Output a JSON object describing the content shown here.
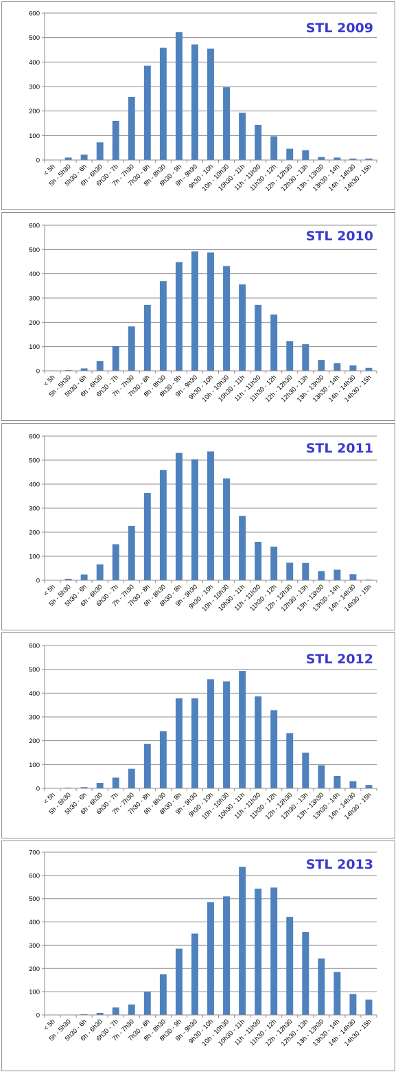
{
  "colors": {
    "bar": "#4f81bd",
    "grid": "#8c8c8c",
    "axis": "#8c8c8c",
    "title": "#3a3ad2"
  },
  "chart_data": [
    {
      "type": "bar",
      "title": "STL 2009",
      "categories": [
        "< 5h",
        "5h - 5h30",
        "5h30 - 6h",
        "6h - 6h30",
        "6h30 - 7h",
        "7h - 7h30",
        "7h30 - 8h",
        "8h - 8h30",
        "8h30 - 9h",
        "9h - 9h30",
        "9h30 - 10h",
        "10h - 10h30",
        "10h30 - 11h",
        "11h - 11h30",
        "11h30 - 12h",
        "12h - 12h30",
        "12h30 - 13h",
        "13h - 13h30",
        "13h30 - 14h",
        "14h - 14h30",
        "14h30 - 15h"
      ],
      "values": [
        0,
        10,
        22,
        72,
        160,
        258,
        385,
        458,
        522,
        472,
        455,
        297,
        193,
        143,
        97,
        46,
        40,
        12,
        10,
        6,
        6
      ],
      "ylim": [
        0,
        600
      ],
      "yticks": [
        0,
        100,
        200,
        300,
        400,
        500,
        600
      ],
      "grid": true,
      "legend": "none"
    },
    {
      "type": "bar",
      "title": "STL 2010",
      "categories": [
        "< 5h",
        "5h - 5h30",
        "5h30 - 6h",
        "6h - 6h30",
        "6h30 - 7h",
        "7h - 7h30",
        "7h30 - 8h",
        "8h - 8h30",
        "8h30 - 9h",
        "9h - 9h30",
        "9h30 - 10h",
        "10h - 10h30",
        "10h30 - 11h",
        "11h - 11h30",
        "11h30 - 12h",
        "12h - 12h30",
        "12h30 - 13h",
        "13h - 13h30",
        "13h30 - 14h",
        "14h - 14h30",
        "14h30 - 15h"
      ],
      "values": [
        0,
        3,
        10,
        40,
        102,
        183,
        272,
        370,
        448,
        492,
        488,
        432,
        356,
        272,
        232,
        122,
        110,
        45,
        31,
        22,
        12
      ],
      "ylim": [
        0,
        600
      ],
      "yticks": [
        0,
        100,
        200,
        300,
        400,
        500,
        600
      ],
      "grid": true,
      "legend": "none"
    },
    {
      "type": "bar",
      "title": "STL 2011",
      "categories": [
        "< 5h",
        "5h - 5h30",
        "5h30 - 6h",
        "6h - 6h30",
        "6h30 - 7h",
        "7h - 7h30",
        "7h30 - 8h",
        "8h - 8h30",
        "8h30 - 9h",
        "9h - 9h30",
        "9h30 - 10h",
        "10h - 10h30",
        "10h30 - 11h",
        "11h - 11h30",
        "11h30 - 12h",
        "12h - 12h30",
        "12h30 - 13h",
        "13h - 13h30",
        "13h30 - 14h",
        "14h - 14h30",
        "14h30 - 15h"
      ],
      "values": [
        0,
        6,
        24,
        66,
        150,
        226,
        363,
        459,
        530,
        503,
        536,
        424,
        268,
        160,
        140,
        73,
        72,
        38,
        44,
        25,
        3
      ],
      "ylim": [
        0,
        600
      ],
      "yticks": [
        0,
        100,
        200,
        300,
        400,
        500,
        600
      ],
      "grid": true,
      "legend": "none"
    },
    {
      "type": "bar",
      "title": "STL 2012",
      "categories": [
        "< 5h",
        "5h - 5h30",
        "5h30 - 6h",
        "6h - 6h30",
        "6h30 - 7h",
        "7h - 7h30",
        "7h30 - 8h",
        "8h - 8h30",
        "8h30 - 9h",
        "9h - 9h30",
        "9h30 - 10h",
        "10h - 10h30",
        "10h30 - 11h",
        "11h - 11h30",
        "11h30 - 12h",
        "12h - 12h30",
        "12h30 - 13h",
        "13h - 13h30",
        "13h30 - 14h",
        "14h - 14h30",
        "14h30 - 15h"
      ],
      "values": [
        0,
        3,
        5,
        23,
        45,
        82,
        187,
        240,
        378,
        378,
        458,
        449,
        493,
        386,
        328,
        232,
        150,
        97,
        52,
        30,
        14
      ],
      "ylim": [
        0,
        600
      ],
      "yticks": [
        0,
        100,
        200,
        300,
        400,
        500,
        600
      ],
      "grid": true,
      "legend": "none"
    },
    {
      "type": "bar",
      "title": "STL 2013",
      "categories": [
        "< 5h",
        "5h - 5h30",
        "5h30 - 6h",
        "6h - 6h30",
        "6h30 - 7h",
        "7h - 7h30",
        "7h30 - 8h",
        "8h - 8h30",
        "8h30 - 9h",
        "9h - 9h30",
        "9h30 - 10h",
        "10h - 10h30",
        "10h30 - 11h",
        "11h - 11h30",
        "11h30 - 12h",
        "12h - 12h30",
        "12h30 - 13h",
        "13h - 13h30",
        "13h30 - 14h",
        "14h - 14h30",
        "14h30 - 15h"
      ],
      "values": [
        0,
        0,
        3,
        9,
        32,
        45,
        100,
        175,
        285,
        350,
        485,
        510,
        637,
        543,
        548,
        422,
        357,
        243,
        185,
        90,
        66
      ],
      "ylim": [
        0,
        700
      ],
      "yticks": [
        0,
        100,
        200,
        300,
        400,
        500,
        600,
        700
      ],
      "grid": true,
      "legend": "none"
    }
  ]
}
